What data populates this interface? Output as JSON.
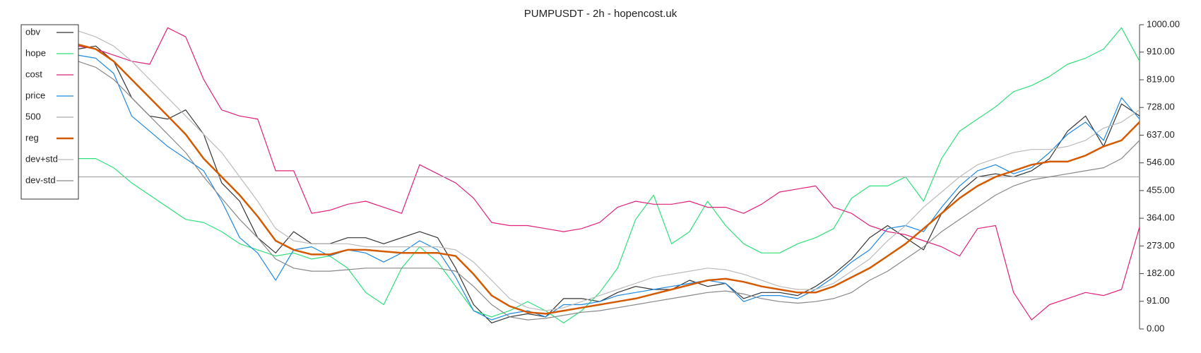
{
  "chart_data": {
    "type": "line",
    "title": "PUMPUSDT - 2h - hopencost.uk",
    "categories": [
      null,
      null,
      null,
      null,
      null,
      null,
      null,
      null,
      null,
      null,
      null,
      null,
      null,
      null,
      null,
      null,
      null,
      null,
      null,
      null,
      null,
      null,
      null,
      null,
      null,
      null,
      null,
      null,
      null,
      null,
      null,
      null,
      null,
      null,
      null,
      null,
      null,
      null,
      null,
      null,
      null,
      null,
      null,
      null,
      null,
      null,
      null,
      null,
      null,
      null,
      null,
      null,
      null,
      null,
      null,
      null,
      null,
      null,
      null,
      null
    ],
    "ylim": [
      0,
      1000
    ],
    "yticks": [
      {
        "value": 0,
        "label": "0.00"
      },
      {
        "value": 91,
        "label": "91.00"
      },
      {
        "value": 182,
        "label": "182.00"
      },
      {
        "value": 273,
        "label": "273.00"
      },
      {
        "value": 364,
        "label": "364.00"
      },
      {
        "value": 455,
        "label": "455.00"
      },
      {
        "value": 546,
        "label": "546.00"
      },
      {
        "value": 637,
        "label": "637.00"
      },
      {
        "value": 728,
        "label": "728.00"
      },
      {
        "value": 819,
        "label": "819.00"
      },
      {
        "value": 910,
        "label": "910.00"
      },
      {
        "value": 1000,
        "label": "1000.00"
      }
    ],
    "legend": "upper left",
    "series": [
      {
        "name": "obv",
        "color": "#333333",
        "values": [
          920,
          930,
          880,
          760,
          700,
          690,
          720,
          640,
          480,
          420,
          300,
          250,
          320,
          280,
          280,
          300,
          300,
          280,
          300,
          320,
          300,
          200,
          80,
          20,
          40,
          50,
          40,
          100,
          100,
          90,
          120,
          140,
          130,
          130,
          160,
          140,
          150,
          100,
          120,
          120,
          110,
          140,
          180,
          230,
          300,
          340,
          300,
          260,
          380,
          450,
          500,
          510,
          500,
          520,
          560,
          650,
          700,
          600,
          740,
          700
        ]
      },
      {
        "name": "hope",
        "color": "#2ee07a",
        "values": [
          560,
          560,
          530,
          480,
          440,
          400,
          360,
          350,
          320,
          280,
          260,
          240,
          250,
          230,
          240,
          200,
          120,
          80,
          200,
          270,
          220,
          140,
          60,
          40,
          60,
          90,
          60,
          20,
          60,
          120,
          200,
          360,
          440,
          280,
          320,
          420,
          340,
          280,
          250,
          250,
          280,
          300,
          330,
          430,
          470,
          470,
          500,
          420,
          560,
          650,
          690,
          730,
          780,
          800,
          830,
          870,
          890,
          920,
          990,
          880
        ]
      },
      {
        "name": "cost",
        "color": "#e0207a",
        "values": [
          930,
          920,
          900,
          880,
          870,
          990,
          960,
          820,
          720,
          700,
          690,
          520,
          520,
          380,
          390,
          410,
          420,
          400,
          380,
          540,
          510,
          480,
          430,
          350,
          340,
          340,
          330,
          320,
          330,
          350,
          400,
          420,
          410,
          410,
          420,
          400,
          400,
          380,
          410,
          450,
          460,
          470,
          400,
          380,
          340,
          320,
          310,
          290,
          270,
          240,
          330,
          340,
          120,
          30,
          80,
          100,
          120,
          110,
          130,
          335
        ]
      },
      {
        "name": "price",
        "color": "#1f88e0",
        "values": [
          900,
          890,
          840,
          700,
          650,
          600,
          560,
          520,
          420,
          300,
          250,
          160,
          260,
          270,
          240,
          260,
          250,
          220,
          250,
          290,
          260,
          170,
          60,
          30,
          50,
          60,
          40,
          80,
          80,
          90,
          110,
          120,
          130,
          140,
          150,
          160,
          150,
          90,
          110,
          110,
          100,
          130,
          170,
          220,
          260,
          330,
          340,
          320,
          400,
          470,
          520,
          540,
          510,
          530,
          580,
          640,
          680,
          620,
          760,
          690
        ]
      },
      {
        "name": "500",
        "color": "#aaaaaa",
        "values": [
          500,
          500,
          500,
          500,
          500,
          500,
          500,
          500,
          500,
          500,
          500,
          500,
          500,
          500,
          500,
          500,
          500,
          500,
          500,
          500,
          500,
          500,
          500,
          500,
          500,
          500,
          500,
          500,
          500,
          500,
          500,
          500,
          500,
          500,
          500,
          500,
          500,
          500,
          500,
          500,
          500,
          500,
          500,
          500,
          500,
          500,
          500,
          500,
          500,
          500,
          500,
          500,
          500,
          500,
          500,
          500,
          500,
          500,
          500,
          500
        ]
      },
      {
        "name": "reg",
        "color": "#d45a00",
        "width": 2.5,
        "values": [
          935,
          920,
          880,
          820,
          760,
          700,
          640,
          560,
          500,
          440,
          370,
          290,
          260,
          245,
          245,
          260,
          260,
          255,
          250,
          250,
          250,
          240,
          180,
          110,
          75,
          55,
          50,
          60,
          70,
          80,
          90,
          100,
          115,
          130,
          145,
          160,
          165,
          155,
          140,
          130,
          120,
          120,
          140,
          170,
          200,
          240,
          280,
          330,
          380,
          430,
          470,
          500,
          520,
          540,
          550,
          550,
          570,
          600,
          620,
          680
        ]
      },
      {
        "name": "dev+std",
        "color": "#bbbbbb",
        "values": [
          980,
          960,
          930,
          880,
          820,
          760,
          700,
          640,
          580,
          500,
          420,
          330,
          290,
          280,
          280,
          280,
          270,
          270,
          270,
          270,
          270,
          260,
          220,
          160,
          100,
          70,
          60,
          70,
          90,
          110,
          130,
          150,
          170,
          180,
          190,
          200,
          195,
          180,
          160,
          140,
          130,
          130,
          150,
          190,
          230,
          290,
          340,
          400,
          450,
          500,
          540,
          560,
          580,
          590,
          590,
          600,
          620,
          660,
          680,
          720
        ]
      },
      {
        "name": "dev-std",
        "color": "#888888",
        "values": [
          880,
          860,
          820,
          760,
          700,
          640,
          580,
          500,
          430,
          360,
          300,
          230,
          200,
          190,
          190,
          195,
          200,
          200,
          200,
          200,
          200,
          190,
          140,
          80,
          40,
          30,
          35,
          45,
          55,
          60,
          70,
          80,
          90,
          100,
          110,
          120,
          125,
          115,
          100,
          90,
          85,
          90,
          100,
          120,
          160,
          190,
          230,
          270,
          320,
          360,
          400,
          440,
          470,
          490,
          500,
          510,
          520,
          530,
          560,
          620
        ]
      }
    ]
  }
}
